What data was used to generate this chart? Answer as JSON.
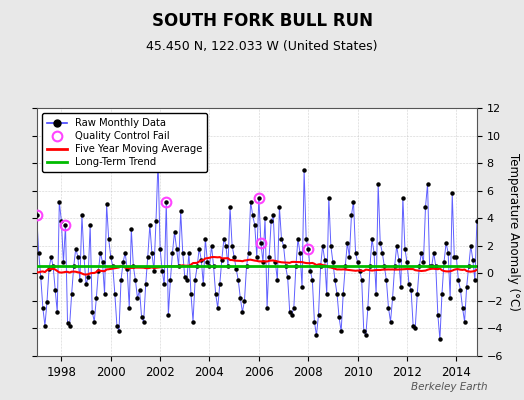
{
  "title": "SOUTH FORK BULL RUN",
  "subtitle": "45.450 N, 122.033 W (United States)",
  "ylabel": "Temperature Anomaly (°C)",
  "watermark": "Berkeley Earth",
  "background_color": "#e8e8e8",
  "plot_bg_color": "#ffffff",
  "ylim": [
    -6,
    12
  ],
  "yticks": [
    -6,
    -4,
    -2,
    0,
    2,
    4,
    6,
    8,
    10,
    12
  ],
  "start_year": 1997.0,
  "end_year": 2014.83,
  "raw_line_color": "#4444ff",
  "raw_marker_color": "#000000",
  "ma_color": "#ff0000",
  "trend_color": "#00bb00",
  "qc_color": "#ff44ff",
  "trend_value": 0.55,
  "monthly_data": [
    4.2,
    1.5,
    -0.3,
    -2.5,
    -3.8,
    -2.1,
    0.3,
    1.2,
    0.5,
    -1.2,
    -2.8,
    5.2,
    3.8,
    0.8,
    3.5,
    -3.6,
    -3.8,
    -1.5,
    0.5,
    1.8,
    1.2,
    -0.5,
    4.2,
    1.2,
    -0.8,
    -0.3,
    3.5,
    -2.8,
    -3.5,
    -1.8,
    0.2,
    1.5,
    0.8,
    -1.5,
    5.0,
    2.5,
    1.2,
    0.5,
    -1.5,
    -3.8,
    -4.2,
    -0.5,
    0.8,
    1.5,
    0.3,
    -2.5,
    3.2,
    0.5,
    -0.5,
    -1.8,
    -1.2,
    -3.2,
    -3.5,
    -0.8,
    1.2,
    3.5,
    1.5,
    0.2,
    3.8,
    8.2,
    1.8,
    0.2,
    -0.8,
    5.2,
    -3.0,
    -0.5,
    1.5,
    3.0,
    1.8,
    0.5,
    4.5,
    1.5,
    -0.3,
    -0.5,
    1.5,
    -1.5,
    -3.5,
    -0.5,
    0.5,
    1.8,
    1.0,
    -0.8,
    2.5,
    0.8,
    0.5,
    2.0,
    0.5,
    -1.5,
    -2.5,
    -0.8,
    1.0,
    2.5,
    2.0,
    0.5,
    4.8,
    2.0,
    1.2,
    0.3,
    -0.5,
    -1.8,
    -2.8,
    -2.0,
    0.5,
    1.5,
    5.2,
    4.2,
    3.5,
    1.2,
    5.5,
    2.2,
    0.8,
    4.0,
    -2.5,
    1.2,
    3.8,
    4.2,
    0.8,
    -0.5,
    4.8,
    2.5,
    2.0,
    0.5,
    -0.3,
    -2.8,
    -3.0,
    -2.5,
    0.5,
    2.5,
    1.5,
    -1.0,
    7.5,
    2.5,
    1.8,
    0.2,
    -0.5,
    -3.5,
    -4.5,
    -3.0,
    0.5,
    2.0,
    1.0,
    -1.5,
    5.5,
    2.0,
    0.8,
    -0.5,
    -1.5,
    -3.2,
    -4.2,
    -1.5,
    0.5,
    2.2,
    1.2,
    4.2,
    5.2,
    1.5,
    0.8,
    0.2,
    -0.5,
    -4.2,
    -4.5,
    -2.5,
    0.5,
    2.5,
    1.5,
    -1.5,
    6.5,
    2.2,
    1.5,
    0.5,
    -0.5,
    -2.5,
    -3.5,
    -1.8,
    0.5,
    2.0,
    1.0,
    -1.0,
    5.5,
    1.8,
    0.8,
    -0.8,
    -1.2,
    -3.8,
    -4.0,
    -1.5,
    0.5,
    1.5,
    0.8,
    4.8,
    6.5,
    0.5,
    0.5,
    1.5,
    0.5,
    -3.0,
    -4.8,
    -1.5,
    0.8,
    2.2,
    1.5,
    -1.8,
    5.8,
    1.2,
    1.2,
    -0.5,
    -1.2,
    -2.5,
    -3.5,
    -1.0,
    0.5,
    2.0,
    1.0,
    -0.5,
    3.8,
    0.5,
    -0.3,
    1.0,
    0.5,
    -0.5,
    -2.0,
    -1.0,
    0.8,
    1.2,
    0.8,
    1.2,
    -0.5,
    -1.5
  ],
  "qc_fail_indices": [
    0,
    14,
    63,
    108,
    109,
    132
  ],
  "xtick_years": [
    1998,
    2000,
    2002,
    2004,
    2006,
    2008,
    2010,
    2012,
    2014
  ]
}
